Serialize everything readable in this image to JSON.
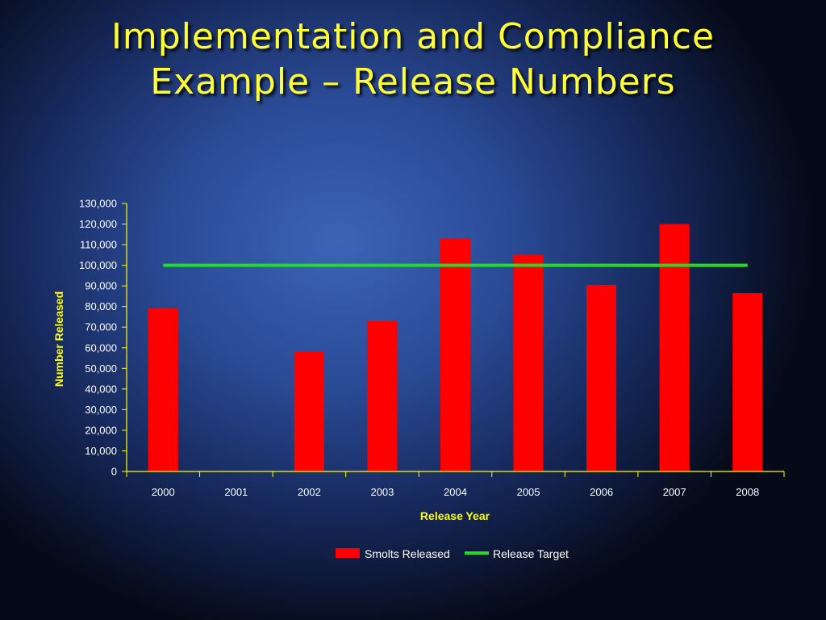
{
  "slide": {
    "title_line1": "Implementation and Compliance",
    "title_line2": "Example – Release Numbers"
  },
  "chart_data": {
    "type": "bar",
    "categories": [
      "2000",
      "2001",
      "2002",
      "2003",
      "2004",
      "2005",
      "2006",
      "2007",
      "2008"
    ],
    "series": [
      {
        "name": "Smolts Released",
        "type": "bar",
        "color": "#ff0000",
        "values": [
          79000,
          0,
          58000,
          73000,
          113000,
          105000,
          90500,
          120000,
          86500
        ]
      },
      {
        "name": "Release Target",
        "type": "line",
        "color": "#22dd22",
        "values": [
          100000,
          100000,
          100000,
          100000,
          100000,
          100000,
          100000,
          100000,
          100000
        ]
      }
    ],
    "xlabel": "Release Year",
    "ylabel": "Number Released",
    "ylim": [
      0,
      130000
    ],
    "yticks": [
      "0",
      "10,000",
      "20,000",
      "30,000",
      "40,000",
      "50,000",
      "60,000",
      "70,000",
      "80,000",
      "90,000",
      "100,000",
      "110,000",
      "120,000",
      "130,000"
    ],
    "grid": false,
    "legend_position": "bottom",
    "axis_color": "#ffff00",
    "tick_label_color": "#ffffff"
  }
}
